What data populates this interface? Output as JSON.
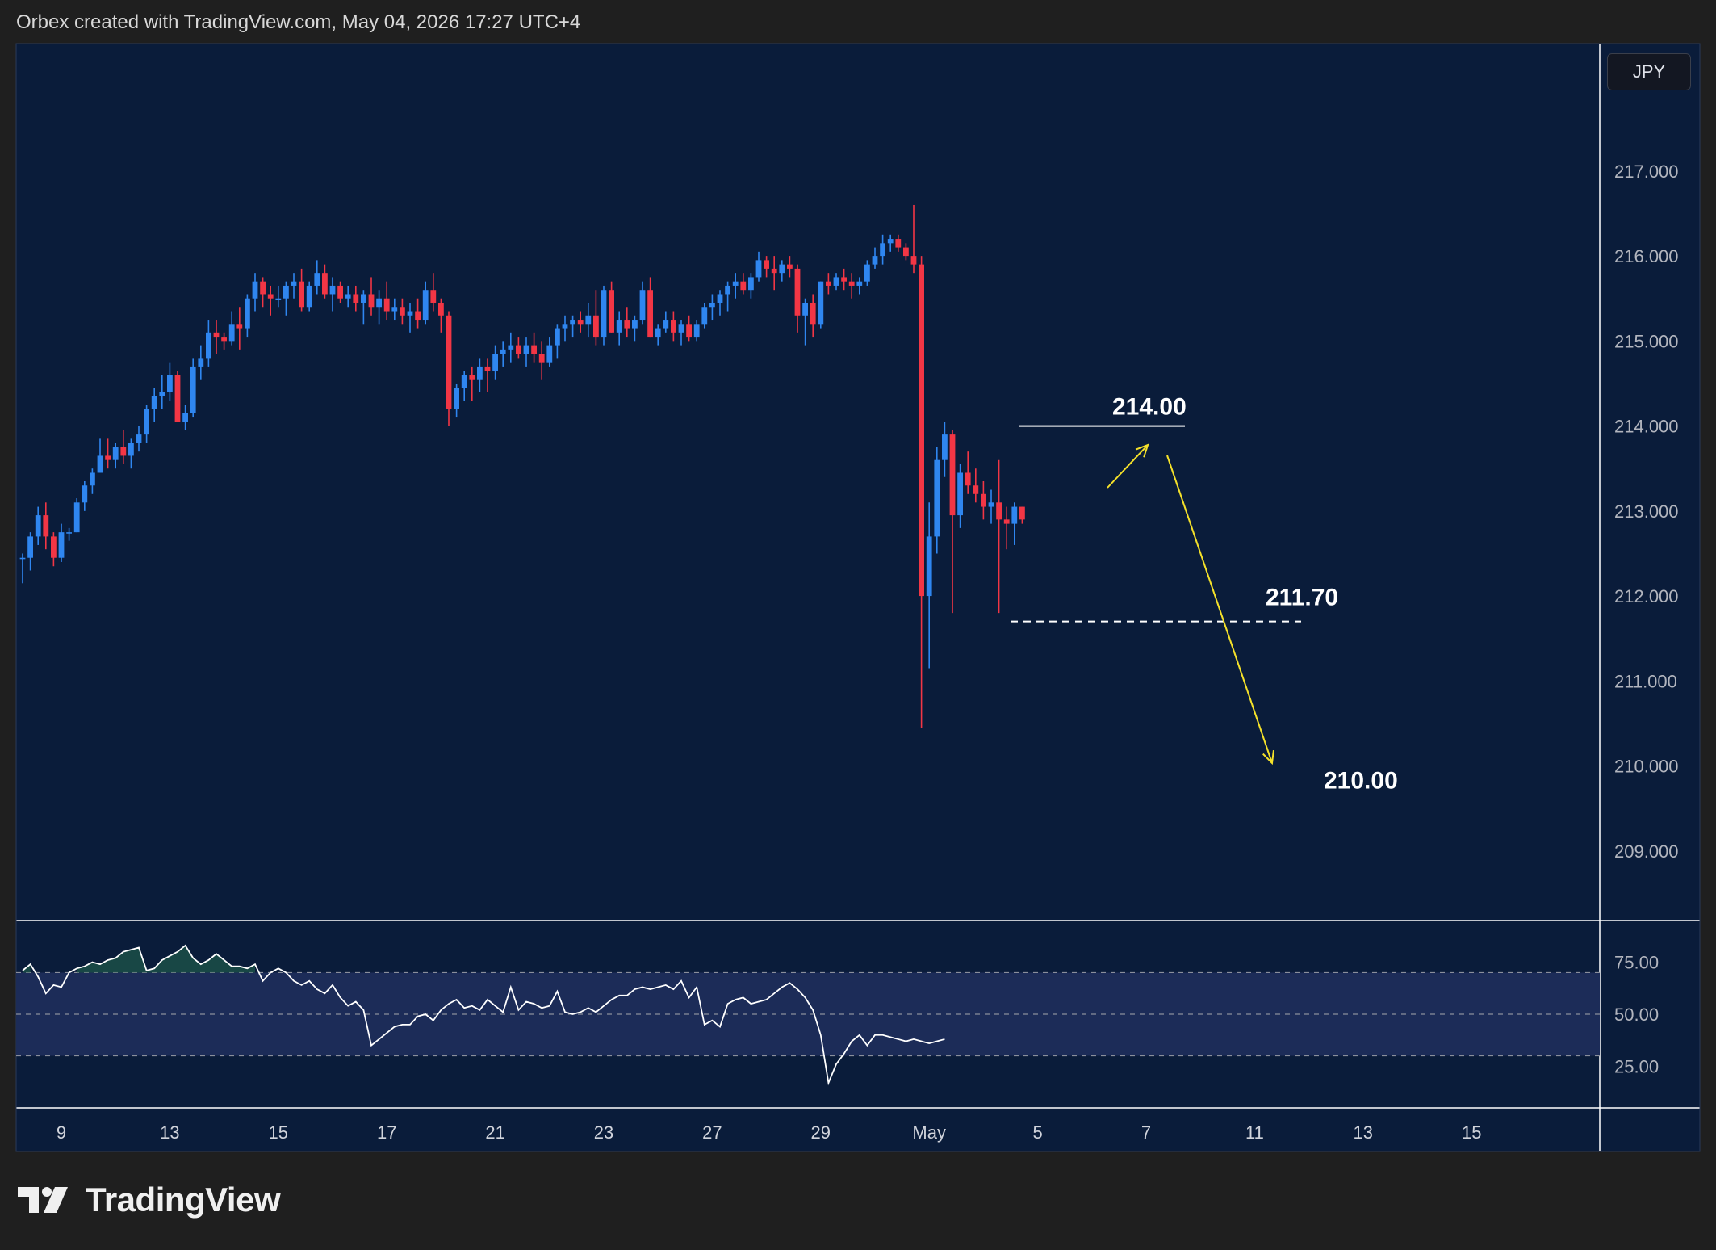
{
  "header": {
    "text": "Orbex created with TradingView.com, May 04, 2026 17:27 UTC+4"
  },
  "symbol": {
    "currency": "JPY"
  },
  "brand": {
    "name": "TradingView",
    "icon": "tradingview-logo-icon"
  },
  "colors": {
    "background": "#1f1f1f",
    "pane": "#0a1c3a",
    "up": "#2f86f0",
    "down": "#f23645",
    "annotation": "#ffffff",
    "arrow": "#f5e12a",
    "rsi": "#ffffff",
    "rsi_band": "#1c2c58"
  },
  "chart_data": [
    {
      "type": "candlestick",
      "title": "",
      "ylim": [
        208.2,
        218.5
      ],
      "y_ticks": [
        "217.000",
        "216.000",
        "215.000",
        "214.000",
        "213.000",
        "212.000",
        "211.000",
        "210.000",
        "209.000"
      ],
      "y_tick_values": [
        217,
        216,
        215,
        214,
        213,
        212,
        211,
        210,
        209
      ],
      "x_ticks": [
        "9",
        "13",
        "15",
        "17",
        "21",
        "23",
        "27",
        "29",
        "May",
        "5",
        "7",
        "11",
        "13",
        "15"
      ],
      "x_tick_index": [
        5,
        19,
        33,
        47,
        61,
        75,
        89,
        103,
        117,
        131,
        145,
        159,
        173,
        187
      ],
      "candles": [
        [
          212.45,
          212.5,
          212.15,
          212.45
        ],
        [
          212.45,
          212.75,
          212.3,
          212.7
        ],
        [
          212.7,
          213.05,
          212.6,
          212.95
        ],
        [
          212.95,
          213.1,
          212.55,
          212.7
        ],
        [
          212.7,
          212.75,
          212.35,
          212.45
        ],
        [
          212.45,
          212.85,
          212.4,
          212.75
        ],
        [
          212.75,
          212.8,
          212.65,
          212.75
        ],
        [
          212.75,
          213.15,
          212.75,
          213.1
        ],
        [
          213.1,
          213.35,
          213.0,
          213.3
        ],
        [
          213.3,
          213.5,
          213.2,
          213.45
        ],
        [
          213.45,
          213.85,
          213.45,
          213.65
        ],
        [
          213.65,
          213.85,
          213.5,
          213.6
        ],
        [
          213.6,
          213.8,
          213.5,
          213.75
        ],
        [
          213.75,
          213.95,
          213.55,
          213.65
        ],
        [
          213.65,
          213.85,
          213.5,
          213.8
        ],
        [
          213.8,
          214.0,
          213.7,
          213.9
        ],
        [
          213.9,
          214.25,
          213.8,
          214.2
        ],
        [
          214.2,
          214.45,
          214.05,
          214.35
        ],
        [
          214.35,
          214.6,
          214.2,
          214.4
        ],
        [
          214.4,
          214.75,
          214.3,
          214.6
        ],
        [
          214.6,
          214.65,
          214.05,
          214.05
        ],
        [
          214.05,
          214.25,
          213.95,
          214.15
        ],
        [
          214.15,
          214.8,
          214.1,
          214.7
        ],
        [
          214.7,
          214.95,
          214.55,
          214.8
        ],
        [
          214.8,
          215.25,
          214.7,
          215.1
        ],
        [
          215.1,
          215.25,
          214.85,
          215.05
        ],
        [
          215.05,
          215.1,
          214.9,
          215.0
        ],
        [
          215.0,
          215.35,
          214.95,
          215.2
        ],
        [
          215.2,
          215.4,
          214.9,
          215.15
        ],
        [
          215.15,
          215.55,
          215.05,
          215.5
        ],
        [
          215.5,
          215.8,
          215.35,
          215.7
        ],
        [
          215.7,
          215.75,
          215.4,
          215.55
        ],
        [
          215.55,
          215.65,
          215.3,
          215.5
        ],
        [
          215.5,
          215.65,
          215.4,
          215.5
        ],
        [
          215.5,
          215.7,
          215.3,
          215.65
        ],
        [
          215.65,
          215.8,
          215.5,
          215.7
        ],
        [
          215.7,
          215.85,
          215.35,
          215.4
        ],
        [
          215.4,
          215.7,
          215.35,
          215.65
        ],
        [
          215.65,
          215.95,
          215.55,
          215.8
        ],
        [
          215.8,
          215.9,
          215.5,
          215.55
        ],
        [
          215.55,
          215.75,
          215.35,
          215.65
        ],
        [
          215.65,
          215.7,
          215.45,
          215.5
        ],
        [
          215.5,
          215.65,
          215.4,
          215.55
        ],
        [
          215.55,
          215.65,
          215.35,
          215.45
        ],
        [
          215.45,
          215.6,
          215.2,
          215.55
        ],
        [
          215.55,
          215.75,
          215.3,
          215.4
        ],
        [
          215.4,
          215.6,
          215.2,
          215.5
        ],
        [
          215.5,
          215.7,
          215.25,
          215.35
        ],
        [
          215.35,
          215.5,
          215.25,
          215.4
        ],
        [
          215.4,
          215.5,
          215.2,
          215.3
        ],
        [
          215.3,
          215.45,
          215.1,
          215.35
        ],
        [
          215.35,
          215.5,
          215.15,
          215.25
        ],
        [
          215.25,
          215.7,
          215.2,
          215.6
        ],
        [
          215.6,
          215.8,
          215.35,
          215.45
        ],
        [
          215.45,
          215.5,
          215.1,
          215.3
        ],
        [
          215.3,
          215.35,
          214.0,
          214.2
        ],
        [
          214.2,
          214.5,
          214.1,
          214.45
        ],
        [
          214.45,
          214.65,
          214.3,
          214.6
        ],
        [
          214.6,
          214.7,
          214.3,
          214.55
        ],
        [
          214.55,
          214.8,
          214.4,
          214.7
        ],
        [
          214.7,
          214.8,
          214.4,
          214.65
        ],
        [
          214.65,
          214.95,
          214.55,
          214.85
        ],
        [
          214.85,
          215.0,
          214.7,
          214.9
        ],
        [
          214.9,
          215.1,
          214.75,
          214.95
        ],
        [
          214.95,
          215.05,
          214.8,
          214.85
        ],
        [
          214.85,
          215.05,
          214.7,
          214.95
        ],
        [
          214.95,
          215.1,
          214.75,
          214.85
        ],
        [
          214.85,
          215.0,
          214.55,
          214.75
        ],
        [
          214.75,
          215.05,
          214.7,
          214.95
        ],
        [
          214.95,
          215.2,
          214.8,
          215.15
        ],
        [
          215.15,
          215.3,
          215.0,
          215.2
        ],
        [
          215.2,
          215.3,
          215.05,
          215.25
        ],
        [
          215.25,
          215.35,
          215.1,
          215.2
        ],
        [
          215.2,
          215.45,
          215.05,
          215.3
        ],
        [
          215.3,
          215.6,
          214.95,
          215.05
        ],
        [
          215.05,
          215.65,
          214.95,
          215.6
        ],
        [
          215.6,
          215.7,
          215.1,
          215.1
        ],
        [
          215.1,
          215.35,
          214.95,
          215.25
        ],
        [
          215.25,
          215.4,
          215.05,
          215.15
        ],
        [
          215.15,
          215.3,
          215.0,
          215.25
        ],
        [
          215.25,
          215.7,
          215.2,
          215.6
        ],
        [
          215.6,
          215.75,
          215.05,
          215.05
        ],
        [
          215.05,
          215.2,
          214.95,
          215.15
        ],
        [
          215.15,
          215.35,
          215.1,
          215.25
        ],
        [
          215.25,
          215.35,
          215.0,
          215.1
        ],
        [
          215.1,
          215.25,
          214.95,
          215.2
        ],
        [
          215.2,
          215.3,
          215.0,
          215.05
        ],
        [
          215.05,
          215.25,
          215.0,
          215.2
        ],
        [
          215.2,
          215.45,
          215.15,
          215.4
        ],
        [
          215.4,
          215.55,
          215.25,
          215.45
        ],
        [
          215.45,
          215.6,
          215.3,
          215.55
        ],
        [
          215.55,
          215.7,
          215.35,
          215.65
        ],
        [
          215.65,
          215.8,
          215.5,
          215.7
        ],
        [
          215.7,
          215.8,
          215.55,
          215.6
        ],
        [
          215.6,
          215.8,
          215.5,
          215.75
        ],
        [
          215.75,
          216.05,
          215.7,
          215.95
        ],
        [
          215.95,
          216.0,
          215.75,
          215.85
        ],
        [
          215.85,
          216.0,
          215.6,
          215.8
        ],
        [
          215.8,
          215.95,
          215.7,
          215.9
        ],
        [
          215.9,
          216.0,
          215.75,
          215.85
        ],
        [
          215.85,
          215.9,
          215.1,
          215.3
        ],
        [
          215.3,
          215.5,
          214.95,
          215.45
        ],
        [
          215.45,
          215.55,
          215.05,
          215.2
        ],
        [
          215.2,
          215.7,
          215.15,
          215.7
        ],
        [
          215.7,
          215.8,
          215.55,
          215.65
        ],
        [
          215.65,
          215.8,
          215.6,
          215.75
        ],
        [
          215.75,
          215.85,
          215.6,
          215.7
        ],
        [
          215.7,
          215.8,
          215.5,
          215.65
        ],
        [
          215.65,
          215.75,
          215.55,
          215.7
        ],
        [
          215.7,
          215.95,
          215.65,
          215.9
        ],
        [
          215.9,
          216.1,
          215.85,
          216.0
        ],
        [
          216.0,
          216.25,
          215.9,
          216.15
        ],
        [
          216.15,
          216.25,
          216.05,
          216.2
        ],
        [
          216.2,
          216.25,
          216.05,
          216.1
        ],
        [
          216.1,
          216.15,
          215.95,
          216.0
        ],
        [
          216.0,
          216.6,
          215.8,
          215.9
        ],
        [
          215.9,
          216.0,
          210.45,
          212.0
        ],
        [
          212.0,
          213.1,
          211.15,
          212.7
        ],
        [
          212.7,
          213.75,
          212.5,
          213.6
        ],
        [
          213.6,
          214.05,
          213.4,
          213.9
        ],
        [
          213.9,
          213.95,
          211.8,
          212.95
        ],
        [
          212.95,
          213.55,
          212.8,
          213.45
        ],
        [
          213.45,
          213.7,
          213.2,
          213.3
        ],
        [
          213.3,
          213.5,
          213.1,
          213.2
        ],
        [
          213.2,
          213.35,
          212.9,
          213.05
        ],
        [
          213.05,
          213.25,
          212.85,
          213.1
        ],
        [
          213.1,
          213.6,
          211.8,
          212.9
        ],
        [
          212.9,
          213.05,
          212.55,
          212.85
        ],
        [
          212.85,
          213.1,
          212.6,
          213.05
        ],
        [
          213.05,
          213.05,
          212.85,
          212.9
        ]
      ],
      "annotations": [
        {
          "label": "214.00",
          "value": 214.0,
          "style": "solid"
        },
        {
          "label": "211.70",
          "value": 211.7,
          "style": "dashed"
        },
        {
          "label": "210.00",
          "value": 210.0,
          "style": "target"
        }
      ]
    },
    {
      "type": "line",
      "title": "",
      "ylim": [
        5,
        95
      ],
      "y_ticks": [
        "75.00",
        "50.00",
        "25.00"
      ],
      "y_tick_values": [
        75,
        50,
        25
      ],
      "bands": [
        70,
        30
      ],
      "midline": 50,
      "values": [
        71,
        74,
        68,
        60,
        64,
        63,
        70,
        72,
        73,
        75,
        74,
        76,
        77,
        80,
        81,
        82,
        71,
        72,
        76,
        78,
        80,
        83,
        77,
        74,
        76,
        79,
        76,
        73,
        73,
        72,
        74,
        66,
        70,
        72,
        70,
        66,
        64,
        66,
        62,
        60,
        64,
        58,
        54,
        56,
        52,
        35,
        38,
        41,
        44,
        45,
        45,
        49,
        50,
        47,
        52,
        55,
        57,
        53,
        54,
        52,
        57,
        54,
        51,
        63,
        52,
        56,
        55,
        53,
        54,
        61,
        51,
        50,
        51,
        53,
        51,
        54,
        57,
        59,
        59,
        62,
        63,
        62,
        63,
        64,
        62,
        66,
        58,
        63,
        45,
        47,
        44,
        55,
        57,
        58,
        55,
        56,
        57,
        60,
        63,
        65,
        62,
        58,
        52,
        40,
        17,
        26,
        31,
        37,
        40,
        35,
        40,
        40,
        39,
        38,
        37,
        38,
        37,
        36,
        37,
        38
      ]
    }
  ]
}
